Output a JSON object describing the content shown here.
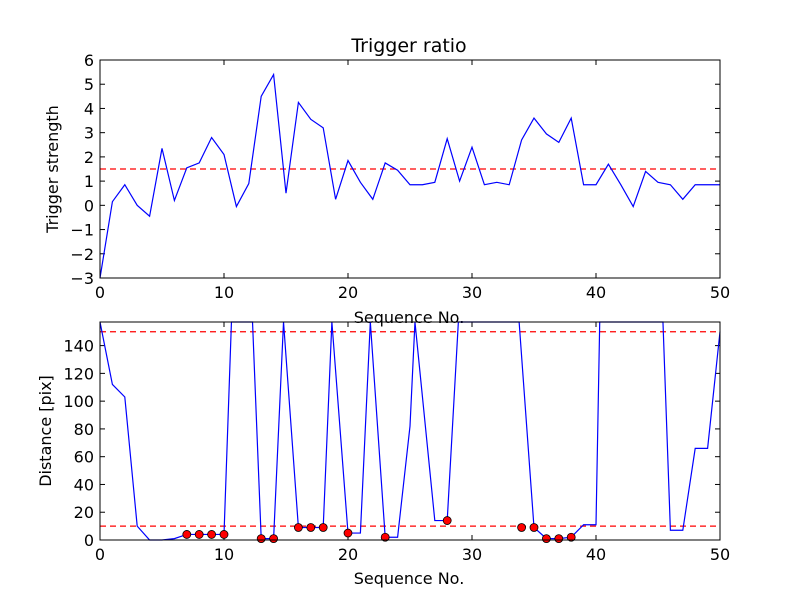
{
  "chart_data": [
    {
      "type": "line",
      "title": "Trigger ratio",
      "xlabel": "Sequence No.",
      "ylabel": "Trigger strength",
      "xlim": [
        0,
        50
      ],
      "ylim": [
        -3,
        6
      ],
      "xticks": [
        0,
        10,
        20,
        30,
        40,
        50
      ],
      "yticks": [
        -3,
        -2,
        -1,
        0,
        1,
        2,
        3,
        4,
        5,
        6
      ],
      "ytick_labels": [
        "−3",
        "−2",
        "−1",
        "0",
        "1",
        "2",
        "3",
        "4",
        "5",
        "6"
      ],
      "threshold": 1.5,
      "series": [
        {
          "color": "#0000ff",
          "x": [
            0,
            1,
            2,
            3,
            4,
            5,
            6,
            7,
            8,
            9,
            10,
            11,
            12,
            13,
            14,
            15,
            16,
            17,
            18,
            19,
            20,
            21,
            22,
            23,
            24,
            25,
            26,
            27,
            28,
            29,
            30,
            31,
            32,
            33,
            34,
            35,
            36,
            37,
            38,
            39,
            40,
            41,
            42,
            43,
            44,
            45,
            46,
            47,
            48,
            49,
            50
          ],
          "y": [
            -3,
            0.15,
            0.85,
            0,
            -0.45,
            2.35,
            0.2,
            1.55,
            1.75,
            2.8,
            2.1,
            -0.05,
            0.9,
            4.5,
            5.4,
            0.5,
            4.25,
            3.55,
            3.2,
            0.25,
            1.85,
            0.95,
            0.25,
            1.75,
            1.45,
            0.85,
            0.85,
            0.95,
            2.75,
            1,
            2.4,
            0.85,
            0.95,
            0.85,
            2.7,
            3.6,
            2.95,
            2.6,
            3.6,
            0.85,
            0.85,
            1.7,
            0.85,
            -0.05,
            1.4,
            0.95,
            0.85,
            0.25,
            0.85,
            0.85,
            0.85
          ]
        }
      ],
      "threshold_color": "#ff0000",
      "grid": false
    },
    {
      "type": "line",
      "title": "",
      "xlabel": "Sequence No.",
      "ylabel": "Distance [pix]",
      "xlim": [
        0,
        50
      ],
      "ylim": [
        0,
        157
      ],
      "xticks": [
        0,
        10,
        20,
        30,
        40,
        50
      ],
      "yticks": [
        0,
        20,
        40,
        60,
        80,
        100,
        120,
        140
      ],
      "thresholds": [
        150,
        10
      ],
      "series": [
        {
          "color": "#0000ff",
          "x": [
            0,
            1,
            2,
            3,
            4,
            5,
            6,
            7,
            8,
            9,
            10,
            10.6,
            12.3,
            13,
            14,
            14.8,
            16,
            17,
            18,
            18.7,
            20,
            21,
            21.8,
            23,
            24,
            25,
            25.4,
            27,
            28,
            28.9,
            33.8,
            35,
            36,
            37,
            38,
            39,
            40,
            40.3,
            45.4,
            46,
            47,
            48,
            49,
            50
          ],
          "y": [
            157,
            112,
            103,
            10,
            0,
            0,
            1,
            4,
            4,
            4,
            4,
            157,
            157,
            1,
            1,
            157,
            9,
            9,
            9,
            157,
            5,
            5,
            157,
            2,
            2,
            82,
            157,
            14,
            14,
            157,
            157,
            9,
            1,
            1,
            2,
            11,
            11,
            157,
            157,
            7,
            7,
            66,
            66,
            150
          ]
        }
      ],
      "markers": {
        "color": "#ff0000",
        "x": [
          7,
          8,
          9,
          10,
          13,
          14,
          16,
          17,
          18,
          20,
          23,
          28,
          34,
          35,
          36,
          37,
          38
        ],
        "y": [
          4,
          4,
          4,
          4,
          1,
          1,
          9,
          9,
          9,
          5,
          2,
          14,
          9,
          9,
          1,
          1,
          2
        ]
      },
      "threshold_color": "#ff0000",
      "grid": false
    }
  ]
}
